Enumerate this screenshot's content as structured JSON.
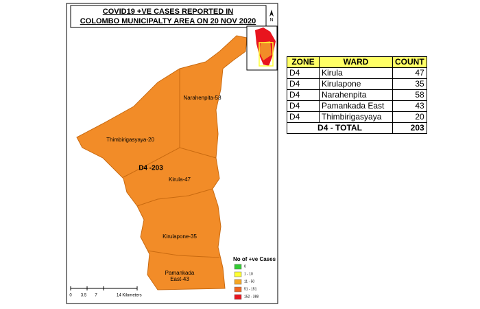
{
  "map": {
    "title_lines": [
      "COVID19 +VE CASES REPORTED IN",
      "COLOMBO MUNICIPALTY AREA ON 20 NOV 2020"
    ],
    "north": "N",
    "ward_labels": [
      "Narahenpita-58",
      "Thimbirigasyaya-20",
      "D4 -203",
      "Kirula-47",
      "Kirulapone-35",
      "Pamankada",
      "East-43"
    ],
    "legend": {
      "title": "No of +ve Cases",
      "items": [
        {
          "label": "0",
          "color": "#33cc33"
        },
        {
          "label": "1 - 10",
          "color": "#ffff33"
        },
        {
          "label": "11 - 50",
          "color": "#f5a623"
        },
        {
          "label": "51 - 151",
          "color": "#f0641e"
        },
        {
          "label": "152 - 388",
          "color": "#e8141e"
        }
      ]
    },
    "scale_labels": [
      "0",
      "3.5",
      "7",
      "14 Kilometers"
    ]
  },
  "table": {
    "header": [
      "ZONE",
      "WARD",
      "COUNT"
    ],
    "rows": [
      [
        "D4",
        "Kirula",
        47
      ],
      [
        "D4",
        "Kirulapone",
        35
      ],
      [
        "D4",
        "Narahenpita",
        58
      ],
      [
        "D4",
        "Pamankada East",
        43
      ],
      [
        "D4",
        "Thimbirigasyaya",
        20
      ]
    ],
    "total": [
      "D4 - TOTAL",
      203
    ]
  }
}
